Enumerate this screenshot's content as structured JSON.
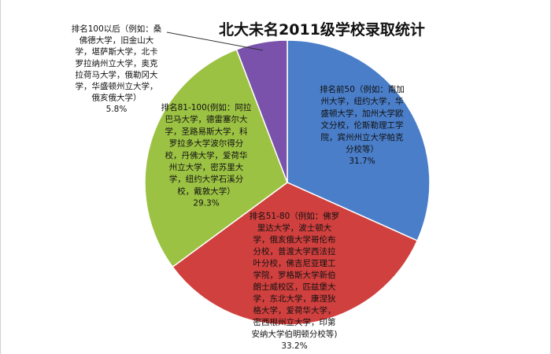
{
  "chart_data": {
    "type": "pie",
    "title": "北大未名2011级学校录取统计",
    "slices": [
      {
        "label_lines": [
          "排名前50（例如：南加",
          "州大学，纽约大学，华",
          "盛顿大学，加州大学欧",
          "文分校，伦斯勒理工学",
          "院，宾州州立大学帕克",
          "分校等）"
        ],
        "value": 31.7,
        "percent_label": "31.7%",
        "color": "#4a7ec9"
      },
      {
        "label_lines": [
          "排名51-80（例如：佛罗",
          "里达大学，波士顿大",
          "学，俄亥俄大学哥伦布",
          "分校，普渡大学西法拉",
          "叶分校，佛吉尼亚理工",
          "学院，罗格斯大学新伯",
          "朗士威校区，匹兹堡大",
          "学，东北大学，康涅狄",
          "格大学，爱荷华大学，",
          "密西根州立大学，印第",
          "安纳大学伯明顿分校等)"
        ],
        "value": 33.2,
        "percent_label": "33.2%",
        "color": "#d0403e"
      },
      {
        "label_lines": [
          "排名81-100(例如：阿拉",
          "巴马大学，德雷塞尔大",
          "学，圣路易斯大学，科",
          "罗拉多大学波尔得分",
          "校，丹佛大学，爱荷华",
          "州立大学，密苏里大",
          "学，纽约大学石溪分",
          "校，戴敦大学）"
        ],
        "value": 29.3,
        "percent_label": "29.3%",
        "color": "#9cc244"
      },
      {
        "label_lines": [
          "排名100以后（例如：桑",
          "佛德大学，旧金山大",
          "学，堪萨斯大学，北卡",
          "罗拉纳州立大学，奥克",
          "拉荷马大学，俄勒冈大",
          "学，华盛顿州立大学，",
          "俄亥俄大学）"
        ],
        "value": 5.8,
        "percent_label": "5.8%",
        "color": "#7a52ac"
      }
    ],
    "legend": "none"
  }
}
